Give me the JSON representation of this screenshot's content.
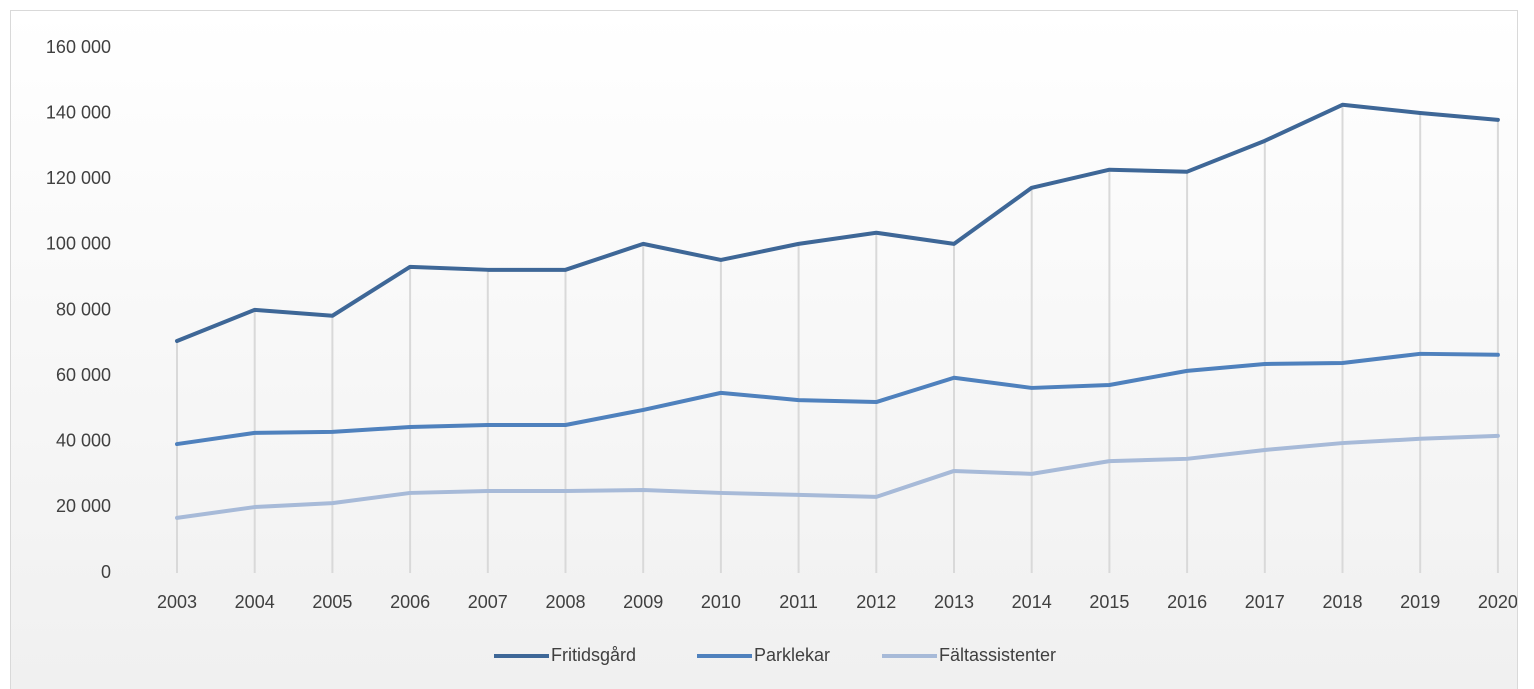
{
  "chart_data": {
    "type": "line",
    "categories": [
      "2003",
      "2004",
      "2005",
      "2006",
      "2007",
      "2008",
      "2009",
      "2010",
      "2011",
      "2012",
      "2013",
      "2014",
      "2015",
      "2016",
      "2017",
      "2018",
      "2019",
      "2020"
    ],
    "series": [
      {
        "name": "Fritidsgård",
        "color": "#3e6797",
        "values": [
          70700,
          80200,
          78400,
          93300,
          92400,
          92400,
          100300,
          95400,
          100300,
          103700,
          100300,
          117400,
          122900,
          122300,
          131700,
          142700,
          140200,
          138100
        ]
      },
      {
        "name": "Parklekar",
        "color": "#4f81bd",
        "values": [
          39300,
          42700,
          43000,
          44500,
          45100,
          45100,
          49700,
          54900,
          52700,
          52100,
          59500,
          56400,
          57300,
          61600,
          63700,
          64000,
          66800,
          66500
        ]
      },
      {
        "name": "Fältassistenter",
        "color": "#a7bad8",
        "values": [
          16800,
          20100,
          21300,
          24400,
          25000,
          25000,
          25300,
          24400,
          23800,
          23200,
          31100,
          30200,
          34100,
          34800,
          37500,
          39600,
          40900,
          41800
        ]
      }
    ],
    "ylim": [
      0,
      160000
    ],
    "yticks": [
      {
        "value": 0,
        "label": "0"
      },
      {
        "value": 20000,
        "label": "20 000"
      },
      {
        "value": 40000,
        "label": "40 000"
      },
      {
        "value": 60000,
        "label": "60 000"
      },
      {
        "value": 80000,
        "label": "80 000"
      },
      {
        "value": 100000,
        "label": "100 000"
      },
      {
        "value": 120000,
        "label": "120 000"
      },
      {
        "value": 140000,
        "label": "140 000"
      },
      {
        "value": 160000,
        "label": "160 000"
      }
    ],
    "legend": "bottom"
  }
}
